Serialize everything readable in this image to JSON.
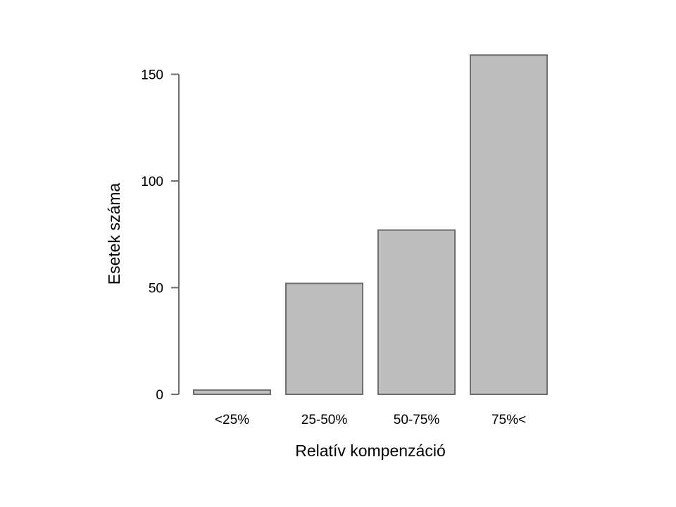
{
  "chart_data": {
    "type": "bar",
    "categories": [
      "<25%",
      "25-50%",
      "50-75%",
      "75%<"
    ],
    "values": [
      2,
      52,
      77,
      159
    ],
    "title": "",
    "xlabel": "Relatív kompenzáció",
    "ylabel": "Esetek száma",
    "ylim": [
      0,
      150
    ],
    "yticks": [
      0,
      50,
      100,
      150
    ],
    "grid": false,
    "colors": {
      "bar_fill": "#bebebe",
      "bar_stroke": "#6e6e6e",
      "axis": "#6e6e6e"
    }
  }
}
